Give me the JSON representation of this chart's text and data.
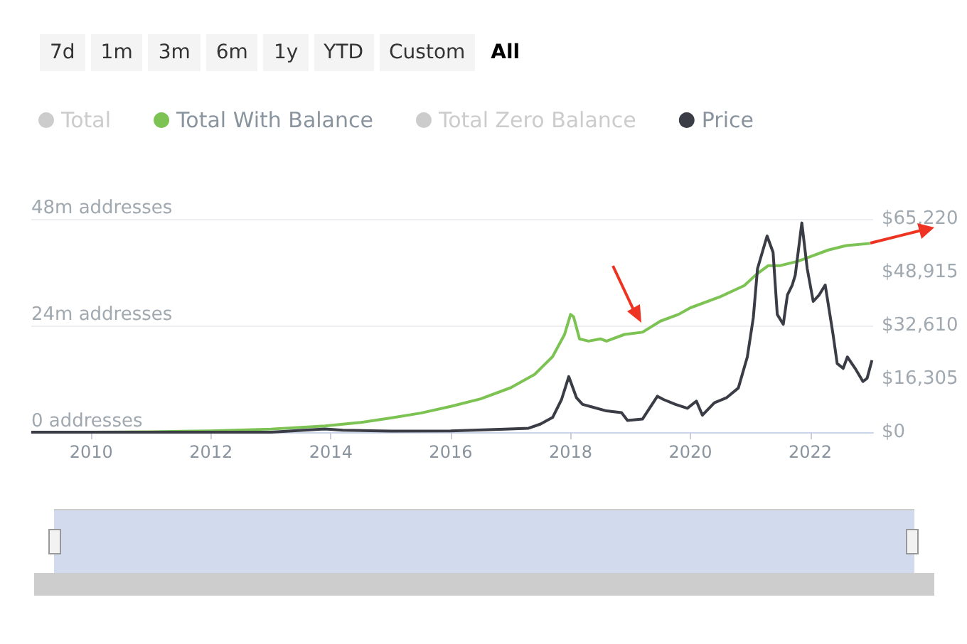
{
  "chart_data": {
    "type": "line",
    "annotations": [
      "7d",
      "1m",
      "3m",
      "6m",
      "1y",
      "YTD",
      "Custom",
      "All"
    ],
    "xlim": [
      2009,
      2023.05
    ],
    "xticks": [
      2010,
      2012,
      2014,
      2016,
      2018,
      2020,
      2022
    ],
    "ylim": [
      0,
      48
    ],
    "yticks": [
      {
        "value": 0,
        "label": "0 addresses"
      },
      {
        "value": 24,
        "label": "24m addresses"
      },
      {
        "value": 48,
        "label": "48m addresses"
      }
    ],
    "y2lim": [
      0,
      65220
    ],
    "y2ticks": [
      {
        "value": 0,
        "label": "$0"
      },
      {
        "value": 16305,
        "label": "$16,305"
      },
      {
        "value": 32610,
        "label": "$32,610"
      },
      {
        "value": 48915,
        "label": "$48,915"
      },
      {
        "value": 65220,
        "label": "$65,220"
      }
    ],
    "grid": "y",
    "legend": "top left",
    "marker": "none",
    "series": [
      {
        "name": "Total",
        "color": "#cccccc"
      },
      {
        "name": "Total With Balance",
        "color": "#7cc353",
        "x": [
          2009,
          2010,
          2011,
          2012,
          2013,
          2013.9,
          2014.5,
          2015,
          2015.5,
          2016,
          2016.5,
          2017,
          2017.4,
          2017.7,
          2017.9,
          2018.0,
          2018.05,
          2018.15,
          2018.3,
          2018.5,
          2018.6,
          2018.9,
          2019.2,
          2019.5,
          2019.8,
          2020,
          2020.5,
          2020.9,
          2021.1,
          2021.3,
          2021.5,
          2021.8,
          2022,
          2022.3,
          2022.6,
          2023
        ],
        "values": [
          0,
          0,
          0.1,
          0.3,
          0.7,
          1.4,
          2.2,
          3.2,
          4.3,
          5.8,
          7.5,
          10,
          13,
          17,
          22,
          26.5,
          26,
          21,
          20.5,
          21,
          20.5,
          22,
          22.5,
          25,
          26.5,
          28,
          30.5,
          33,
          35.5,
          37.5,
          37.5,
          38.5,
          39.5,
          41,
          42,
          42.5
        ]
      },
      {
        "name": "Total Zero Balance",
        "color": "#cccccc"
      },
      {
        "name": "Price",
        "color": "#3a3d45",
        "axis": "y2",
        "x": [
          2009,
          2011,
          2012,
          2013,
          2013.9,
          2014.2,
          2015,
          2016,
          2016.9,
          2017.3,
          2017.5,
          2017.7,
          2017.85,
          2017.97,
          2018.1,
          2018.2,
          2018.4,
          2018.6,
          2018.85,
          2018.95,
          2019.2,
          2019.45,
          2019.55,
          2019.75,
          2019.95,
          2020.1,
          2020.2,
          2020.4,
          2020.6,
          2020.8,
          2020.95,
          2021.05,
          2021.12,
          2021.28,
          2021.38,
          2021.45,
          2021.55,
          2021.62,
          2021.7,
          2021.75,
          2021.86,
          2021.95,
          2022.05,
          2022.15,
          2022.25,
          2022.38,
          2022.45,
          2022.55,
          2022.62,
          2022.75,
          2022.88,
          2022.95,
          2023.03
        ],
        "values": [
          0,
          0,
          0,
          0,
          1000,
          600,
          300,
          400,
          900,
          1200,
          2500,
          4500,
          10000,
          17000,
          10500,
          8500,
          7500,
          6500,
          6000,
          3600,
          4000,
          11000,
          10000,
          8500,
          7300,
          9500,
          5200,
          9000,
          10500,
          13500,
          23000,
          35000,
          50000,
          60000,
          55000,
          36000,
          33000,
          42000,
          45000,
          48000,
          64000,
          50000,
          40000,
          42000,
          45000,
          30000,
          21000,
          19500,
          23000,
          19500,
          15500,
          16500,
          22000
        ]
      }
    ]
  }
}
